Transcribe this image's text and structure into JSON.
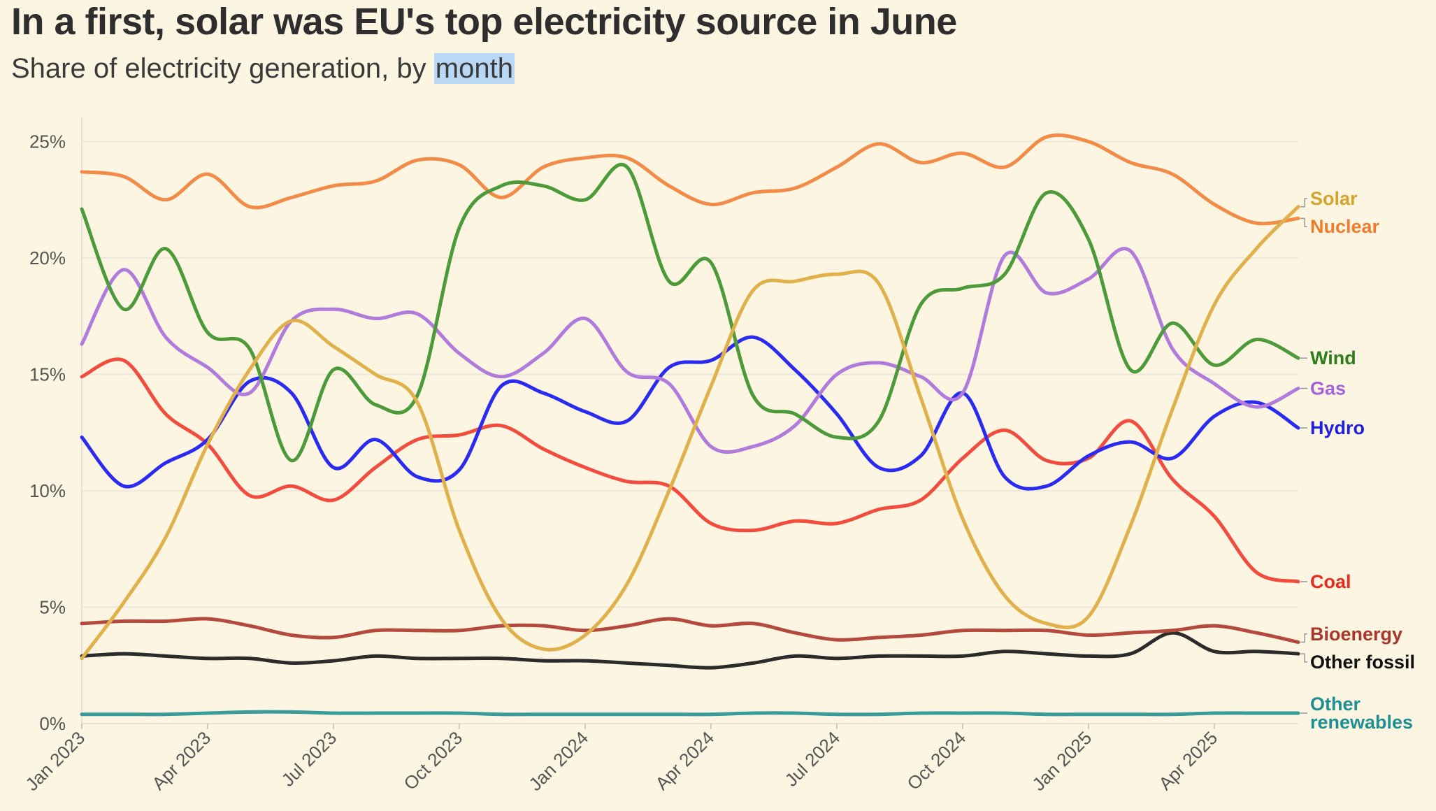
{
  "title": "In a first, solar was EU's top electricity source in June",
  "subtitle_prefix": "Share of electricity generation, by ",
  "subtitle_highlight": "month",
  "chart_data": {
    "type": "line",
    "title": "In a first, solar was EU's top electricity source in June",
    "subtitle": "Share of electricity generation, by month",
    "x": [
      "2023-01",
      "2023-02",
      "2023-03",
      "2023-04",
      "2023-05",
      "2023-06",
      "2023-07",
      "2023-08",
      "2023-09",
      "2023-10",
      "2023-11",
      "2023-12",
      "2024-01",
      "2024-02",
      "2024-03",
      "2024-04",
      "2024-05",
      "2024-06",
      "2024-07",
      "2024-08",
      "2024-09",
      "2024-10",
      "2024-11",
      "2024-12",
      "2025-01",
      "2025-02",
      "2025-03",
      "2025-04",
      "2025-05",
      "2025-06"
    ],
    "x_tick_labels": [
      "Jan 2023",
      "Apr 2023",
      "Jul 2023",
      "Oct 2023",
      "Jan 2024",
      "Apr 2024",
      "Jul 2024",
      "Oct 2024",
      "Jan 2025",
      "Apr 2025"
    ],
    "x_tick_values": [
      "2023-01",
      "2023-04",
      "2023-07",
      "2023-10",
      "2024-01",
      "2024-04",
      "2024-07",
      "2024-10",
      "2025-01",
      "2025-04"
    ],
    "ylim": [
      0,
      26
    ],
    "y_ticks": [
      0,
      5,
      10,
      15,
      20,
      25
    ],
    "y_tick_labels": [
      "0%",
      "5%",
      "10%",
      "15%",
      "20%",
      "25%"
    ],
    "y_unit": "%",
    "grid": "horizontal",
    "legend": "direct labels at right end of lines",
    "series": [
      {
        "name": "Solar",
        "color": "#e0b04a",
        "label_color": "#d4a52c",
        "values": [
          2.8,
          5.2,
          8.0,
          12.0,
          15.2,
          17.3,
          16.2,
          15.0,
          13.8,
          8.3,
          4.5,
          3.2,
          3.8,
          6.0,
          10.0,
          14.5,
          18.6,
          19.0,
          19.3,
          18.9,
          14.0,
          8.8,
          5.5,
          4.3,
          4.6,
          8.5,
          13.5,
          18.0,
          20.4,
          22.2
        ]
      },
      {
        "name": "Nuclear",
        "color": "#f28b48",
        "label_color": "#ef7b2c",
        "values": [
          23.7,
          23.5,
          22.5,
          23.6,
          22.2,
          22.6,
          23.1,
          23.3,
          24.2,
          24.0,
          22.6,
          23.9,
          24.3,
          24.3,
          23.1,
          22.3,
          22.8,
          23.0,
          23.9,
          24.9,
          24.1,
          24.5,
          23.9,
          25.2,
          25.0,
          24.1,
          23.6,
          22.3,
          21.5,
          21.7
        ]
      },
      {
        "name": "Wind",
        "color": "#4d9a3a",
        "label_color": "#2e7d1c",
        "values": [
          22.1,
          17.8,
          20.4,
          16.8,
          16.1,
          11.3,
          15.2,
          13.7,
          14.1,
          21.3,
          23.1,
          23.1,
          22.5,
          23.9,
          19.0,
          19.8,
          14.1,
          13.3,
          12.3,
          13.0,
          18.0,
          18.7,
          19.3,
          22.8,
          20.8,
          15.2,
          17.2,
          15.4,
          16.5,
          15.7
        ]
      },
      {
        "name": "Gas",
        "color": "#b07bdb",
        "label_color": "#a463d6",
        "values": [
          16.3,
          19.5,
          16.6,
          15.3,
          14.2,
          17.3,
          17.8,
          17.4,
          17.6,
          15.9,
          14.9,
          15.9,
          17.4,
          15.1,
          14.6,
          11.9,
          11.9,
          12.8,
          15.0,
          15.5,
          14.9,
          14.2,
          20.1,
          18.5,
          19.1,
          20.3,
          16.1,
          14.6,
          13.6,
          14.4
        ]
      },
      {
        "name": "Hydro",
        "color": "#2a2af0",
        "label_color": "#1f1fe0",
        "values": [
          12.3,
          10.2,
          11.2,
          12.2,
          14.7,
          14.2,
          11.0,
          12.2,
          10.6,
          10.9,
          14.5,
          14.2,
          13.4,
          13.0,
          15.3,
          15.6,
          16.6,
          15.2,
          13.3,
          11.0,
          11.5,
          14.2,
          10.6,
          10.2,
          11.5,
          12.1,
          11.4,
          13.2,
          13.8,
          12.7
        ]
      },
      {
        "name": "Coal",
        "color": "#f24c3f",
        "label_color": "#ea2a1c",
        "values": [
          14.9,
          15.6,
          13.3,
          12.0,
          9.8,
          10.2,
          9.6,
          11.0,
          12.2,
          12.4,
          12.8,
          11.8,
          11.0,
          10.4,
          10.2,
          8.6,
          8.3,
          8.7,
          8.6,
          9.2,
          9.6,
          11.4,
          12.6,
          11.3,
          11.4,
          13.0,
          10.5,
          8.9,
          6.5,
          6.1
        ]
      },
      {
        "name": "Bioenergy",
        "color": "#b44a3e",
        "label_color": "#a8382c",
        "values": [
          4.3,
          4.4,
          4.4,
          4.5,
          4.2,
          3.8,
          3.7,
          4.0,
          4.0,
          4.0,
          4.2,
          4.2,
          4.0,
          4.2,
          4.5,
          4.2,
          4.3,
          3.9,
          3.6,
          3.7,
          3.8,
          4.0,
          4.0,
          4.0,
          3.8,
          3.9,
          4.0,
          4.2,
          3.9,
          3.5
        ]
      },
      {
        "name": "Other fossil",
        "color": "#2b2b2b",
        "label_color": "#111111",
        "values": [
          2.9,
          3.0,
          2.9,
          2.8,
          2.8,
          2.6,
          2.7,
          2.9,
          2.8,
          2.8,
          2.8,
          2.7,
          2.7,
          2.6,
          2.5,
          2.4,
          2.6,
          2.9,
          2.8,
          2.9,
          2.9,
          2.9,
          3.1,
          3.0,
          2.9,
          3.0,
          3.9,
          3.1,
          3.1,
          3.0
        ]
      },
      {
        "name": "Other renewables",
        "label_lines": [
          "Other",
          "renewables"
        ],
        "color": "#3a9a9a",
        "label_color": "#1f8f93",
        "values": [
          0.4,
          0.4,
          0.4,
          0.45,
          0.5,
          0.5,
          0.45,
          0.45,
          0.45,
          0.45,
          0.4,
          0.4,
          0.4,
          0.4,
          0.4,
          0.4,
          0.45,
          0.45,
          0.4,
          0.4,
          0.45,
          0.45,
          0.45,
          0.4,
          0.4,
          0.4,
          0.4,
          0.45,
          0.45,
          0.45
        ]
      }
    ]
  }
}
